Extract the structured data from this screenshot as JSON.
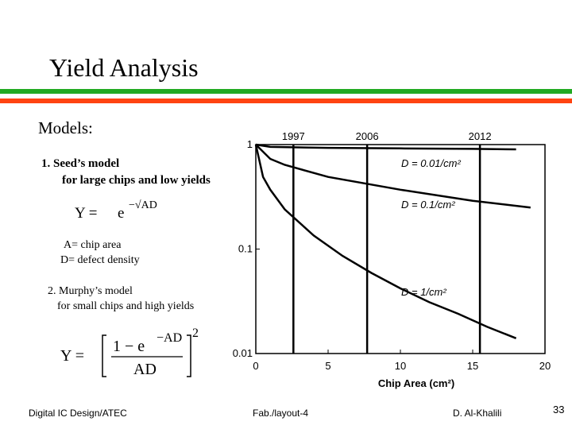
{
  "slide": {
    "title": "Yield Analysis",
    "heading": "Models:",
    "items": [
      {
        "title": "1. Seed’s model",
        "subtitle": "for large chips and low yields"
      },
      {
        "title": "2. Murphy’s model",
        "subtitle": "for small chips and high yields"
      }
    ],
    "seed_formula": {
      "lhs": "Y =",
      "base": "e",
      "exponent": "−√AD"
    },
    "definitions": [
      "A= chip area",
      "D= defect density"
    ],
    "murphy_formula": {
      "lhs": "Y =",
      "numerator": "1 − e",
      "numerator_exponent": "−AD",
      "denominator": "AD",
      "power": "2"
    }
  },
  "footer": {
    "left": "Digital IC Design/ATEC",
    "center": "Fab./layout-4",
    "right": "D. Al-Khalili",
    "page": "33"
  },
  "chart_data": {
    "type": "line",
    "xlabel": "Chip Area (cm²)",
    "xlim": [
      0,
      20
    ],
    "xticks": [
      0,
      5,
      10,
      15,
      20
    ],
    "ylim": [
      0.01,
      1
    ],
    "yticks": [
      0.01,
      0.1,
      1
    ],
    "log_y": true,
    "series": [
      {
        "name": "D = 0.01/cm²",
        "color": "#000000",
        "x": [
          0,
          1,
          5,
          10,
          15,
          18
        ],
        "values": [
          1,
          0.95,
          0.93,
          0.92,
          0.91,
          0.9
        ]
      },
      {
        "name": "D = 0.1/cm²",
        "color": "#000000",
        "x": [
          0,
          1,
          2,
          5,
          10,
          15,
          19
        ],
        "values": [
          1,
          0.73,
          0.64,
          0.49,
          0.37,
          0.29,
          0.25
        ]
      },
      {
        "name": "D = 1/cm²",
        "color": "#000000",
        "x": [
          0,
          0.5,
          1,
          2,
          4,
          6,
          8,
          10,
          12,
          14,
          16,
          18
        ],
        "values": [
          1,
          0.49,
          0.37,
          0.24,
          0.135,
          0.086,
          0.059,
          0.042,
          0.031,
          0.024,
          0.018,
          0.014
        ]
      }
    ],
    "markers": [
      {
        "label": "1997",
        "x": 2.6
      },
      {
        "label": "2006",
        "x": 7.7
      },
      {
        "label": "2012",
        "x": 15.5
      }
    ]
  }
}
